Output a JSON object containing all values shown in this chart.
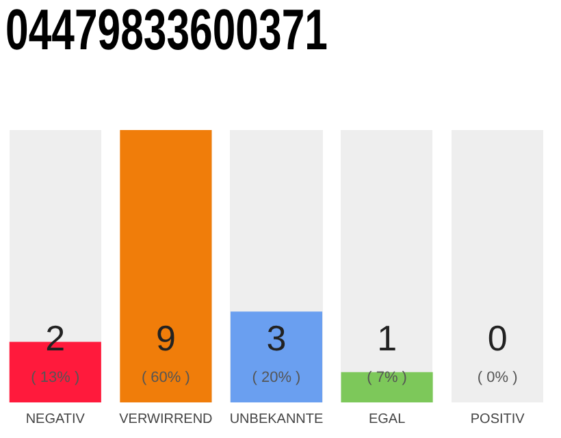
{
  "chart_data": {
    "type": "bar",
    "title": "04479833600371",
    "categories": [
      "NEGATIV",
      "VERWIRREND",
      "UNBEKANNTE",
      "EGAL",
      "POSITIV"
    ],
    "values": [
      2,
      9,
      3,
      1,
      0
    ],
    "colors": [
      "#ff1a3c",
      "#f07d0a",
      "#6a9ff0",
      "#7dc85a",
      "#b0b0b0"
    ],
    "value_labels": [
      "2\n( 13% )",
      "9\n( 60% )",
      "3\n( 20% )",
      "1\n( 7% )",
      "0\n( 0% )"
    ],
    "ylim": [
      0,
      9
    ],
    "tick_labels": "x",
    "grid": false,
    "legend": false
  }
}
